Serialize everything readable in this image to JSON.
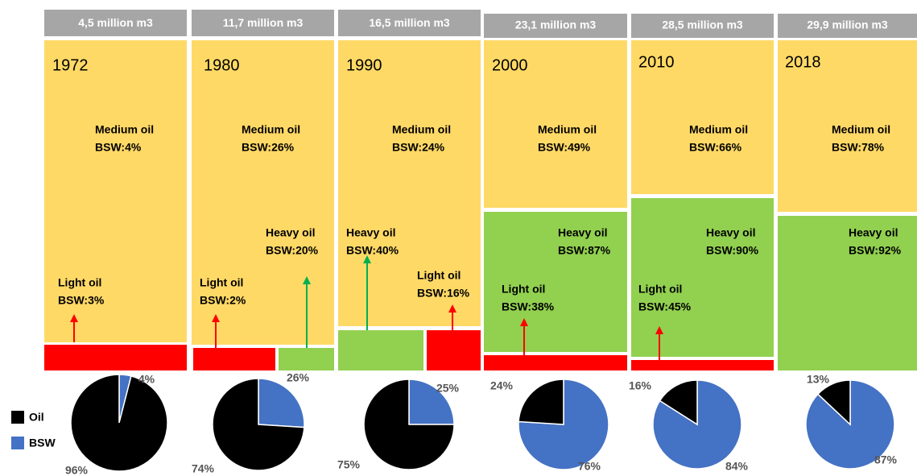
{
  "panels": [
    {
      "volume": "4,5 million m3",
      "year": "1972",
      "medium": [
        "Medium oil",
        "BSW:4%"
      ],
      "light": [
        "Light oil",
        "BSW:3%"
      ]
    },
    {
      "volume": "11,7 million m3",
      "year": "1980",
      "medium": [
        "Medium oil",
        "BSW:26%"
      ],
      "heavy": [
        "Heavy oil",
        "BSW:20%"
      ],
      "light": [
        "Light oil",
        "BSW:2%"
      ]
    },
    {
      "volume": "16,5 million m3",
      "year": "1990",
      "medium": [
        "Medium oil",
        "BSW:24%"
      ],
      "heavy": [
        "Heavy oil",
        "BSW:40%"
      ],
      "light": [
        "Light oil",
        "BSW:16%"
      ]
    },
    {
      "volume": "23,1 million m3",
      "year": "2000",
      "medium": [
        "Medium oil",
        "BSW:49%"
      ],
      "heavy": [
        "Heavy oil",
        "BSW:87%"
      ],
      "light": [
        "Light oil",
        "BSW:38%"
      ]
    },
    {
      "volume": "28,5 million m3",
      "year": "2010",
      "medium": [
        "Medium oil",
        "BSW:66%"
      ],
      "heavy": [
        "Heavy oil",
        "BSW:90%"
      ],
      "light": [
        "Light oil",
        "BSW:45%"
      ]
    },
    {
      "volume": "29,9 million m3",
      "year": "2018",
      "medium": [
        "Medium oil",
        "BSW:78%"
      ],
      "heavy": [
        "Heavy oil",
        "BSW:92%"
      ]
    }
  ],
  "chart_data": [
    {
      "type": "pie",
      "categories": [
        "Oil",
        "BSW"
      ],
      "values": [
        96,
        4
      ],
      "value_labels": [
        "96%",
        "4%"
      ],
      "colors": [
        "#000000",
        "#4472c4"
      ]
    },
    {
      "type": "pie",
      "categories": [
        "Oil",
        "BSW"
      ],
      "values": [
        74,
        26
      ],
      "value_labels": [
        "74%",
        "26%"
      ],
      "colors": [
        "#000000",
        "#4472c4"
      ]
    },
    {
      "type": "pie",
      "categories": [
        "Oil",
        "BSW"
      ],
      "values": [
        75,
        25
      ],
      "value_labels": [
        "75%",
        "25%"
      ],
      "colors": [
        "#000000",
        "#4472c4"
      ]
    },
    {
      "type": "pie",
      "categories": [
        "Oil",
        "BSW"
      ],
      "values": [
        24,
        76
      ],
      "value_labels": [
        "24%",
        "76%"
      ],
      "colors": [
        "#000000",
        "#4472c4"
      ]
    },
    {
      "type": "pie",
      "categories": [
        "Oil",
        "BSW"
      ],
      "values": [
        16,
        84
      ],
      "value_labels": [
        "16%",
        "84%"
      ],
      "colors": [
        "#000000",
        "#4472c4"
      ]
    },
    {
      "type": "pie",
      "categories": [
        "Oil",
        "BSW"
      ],
      "values": [
        13,
        87
      ],
      "value_labels": [
        "13%",
        "87%"
      ],
      "colors": [
        "#000000",
        "#4472c4"
      ]
    }
  ]
}
